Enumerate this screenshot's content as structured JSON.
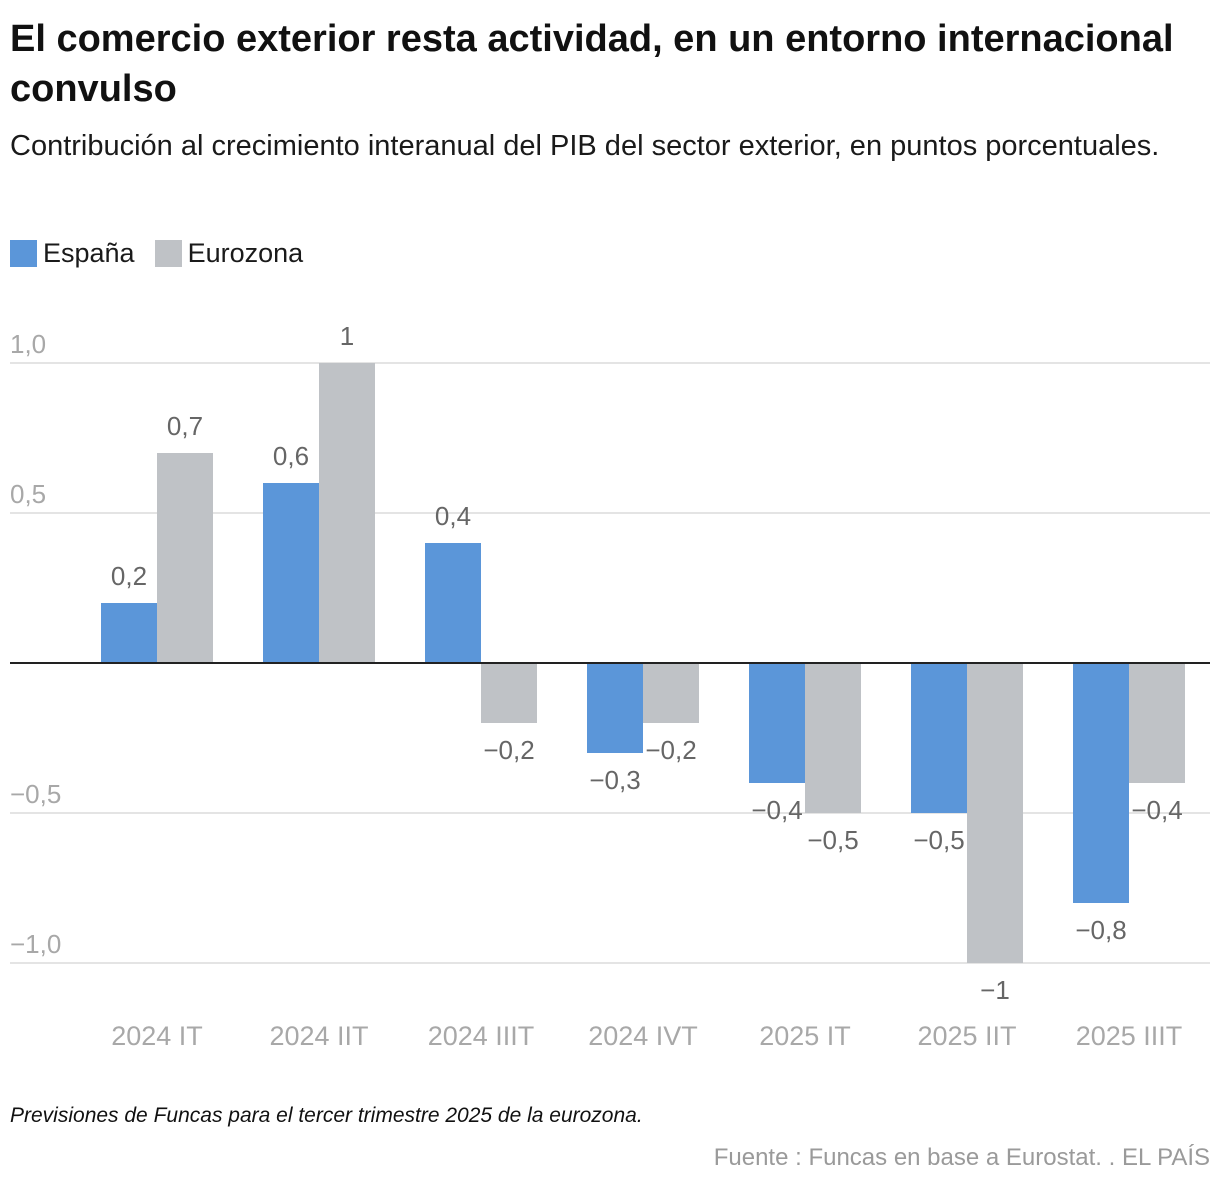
{
  "chart_data": {
    "type": "bar",
    "title": "El comercio exterior resta actividad, en un entorno internacional convulso",
    "subtitle": "Contribución al crecimiento interanual del PIB del sector exterior, en puntos porcentuales.",
    "categories": [
      "2024 IT",
      "2024 IIT",
      "2024 IIIT",
      "2024 IVT",
      "2025 IT",
      "2025 IIT",
      "2025 IIIT"
    ],
    "series": [
      {
        "name": "España",
        "color": "#5b96d9",
        "values": [
          0.2,
          0.6,
          0.4,
          -0.3,
          -0.4,
          -0.5,
          -0.8
        ],
        "labels": [
          "0,2",
          "0,6",
          "0,4",
          "−0,3",
          "−0,4",
          "−0,5",
          "−0,8"
        ]
      },
      {
        "name": "Eurozona",
        "color": "#bfc2c6",
        "values": [
          0.7,
          1,
          -0.2,
          -0.2,
          -0.5,
          -1,
          -0.4
        ],
        "labels": [
          "0,7",
          "1",
          "−0,2",
          "−0,2",
          "−0,5",
          "−1",
          "−0,4"
        ]
      }
    ],
    "ylim": [
      -1.0,
      1.0
    ],
    "yticks": [
      1.0,
      0.5,
      -0.5,
      -1.0
    ],
    "ytick_labels": [
      "1,0",
      "0,5",
      "−0,5",
      "−1,0"
    ],
    "grid": true,
    "legend": "top-left",
    "xlabel": "",
    "ylabel": ""
  },
  "note": "Previsiones de Funcas para el tercer trimestre 2025 de la eurozona.",
  "source": "Fuente : Funcas en base a Eurostat. . EL PAÍS"
}
